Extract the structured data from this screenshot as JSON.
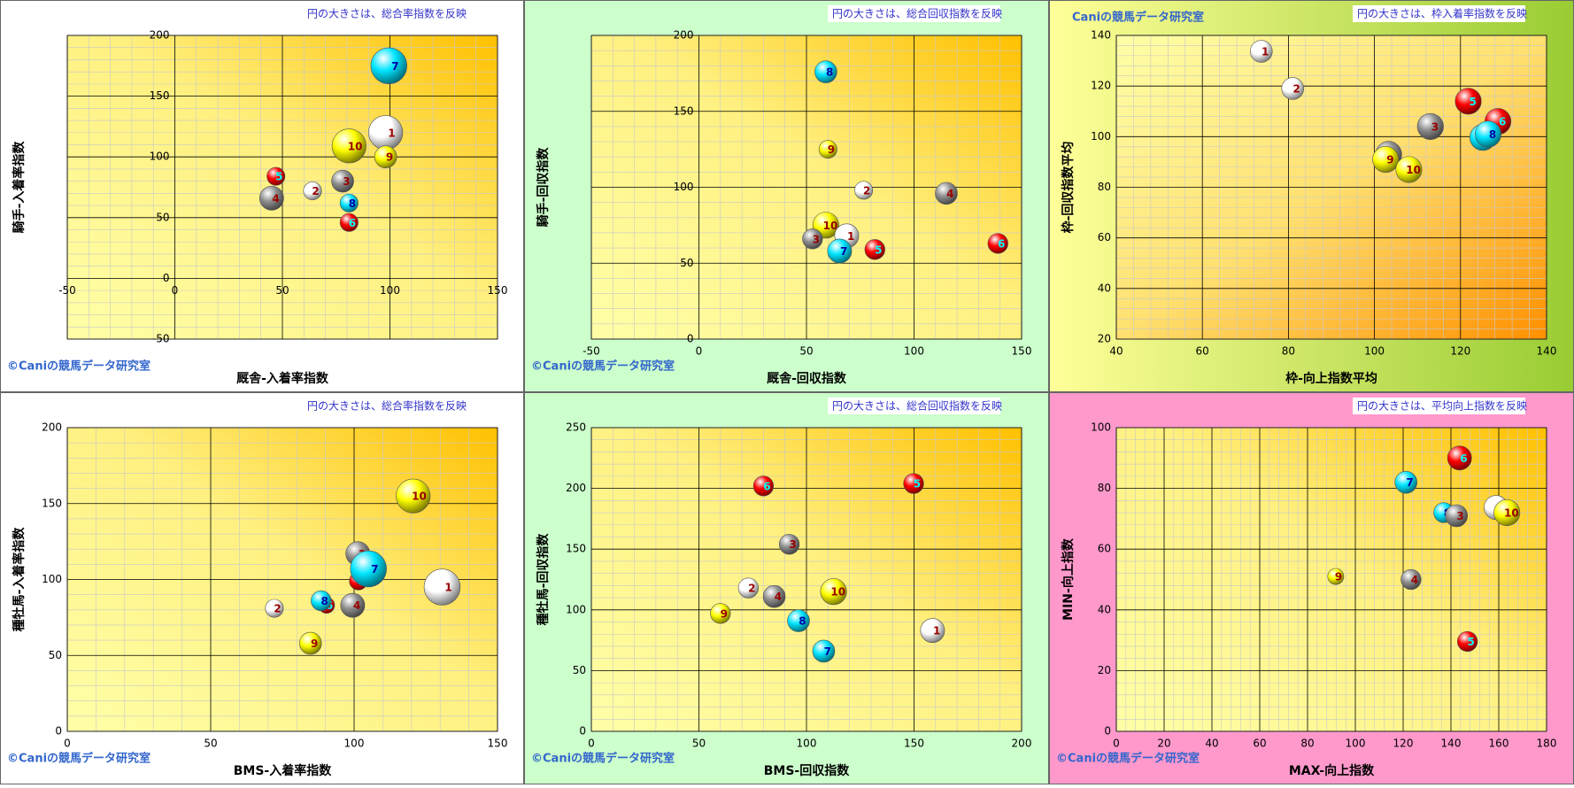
{
  "chart_data": [
    {
      "type": "bubble",
      "annotation": "円の大きさは、総合率指数を反映",
      "credit": "©Caniの競馬データ研究室",
      "credit_corner": "bottom-left",
      "x_label": "厩舎-入着率指数",
      "y_label": "騎手-入着率指数",
      "xlim": [
        -50,
        150
      ],
      "xticks": [
        -50,
        0,
        50,
        100,
        150
      ],
      "ylim": [
        -50,
        200
      ],
      "yticks": [
        -50,
        0,
        50,
        100,
        150,
        200
      ],
      "grid": true,
      "labels": [
        "1",
        "7",
        "10",
        "9",
        "3",
        "2",
        "5",
        "4",
        "8",
        "6"
      ],
      "x": [
        98,
        99.5,
        81,
        98,
        78,
        64,
        47,
        45,
        81,
        81
      ],
      "values": [
        120,
        175,
        109,
        100,
        80,
        72,
        84,
        66,
        62,
        46
      ],
      "sizes": [
        17,
        18,
        17,
        11,
        11,
        9,
        9,
        12,
        9,
        9
      ],
      "colors": [
        "#ffffff",
        "#00e5ff",
        "#ffff00",
        "#ffff00",
        "#909090",
        "#ffffff",
        "#ff0000",
        "#909090",
        "#00e5ff",
        "#ff0000"
      ]
    },
    {
      "type": "bubble",
      "annotation": "円の大きさは、総合回収指数を反映",
      "credit": "©Caniの競馬データ研究室",
      "credit_corner": "bottom-left",
      "x_label": "厩舎-回収指数",
      "y_label": "騎手-回収指数",
      "xlim": [
        -50,
        150
      ],
      "xticks": [
        -50,
        0,
        50,
        100,
        150
      ],
      "ylim": [
        0,
        200
      ],
      "yticks": [
        0,
        50,
        100,
        150,
        200
      ],
      "grid": true,
      "labels": [
        "8",
        "9",
        "2",
        "4",
        "10",
        "1",
        "3",
        "7",
        "5",
        "6"
      ],
      "x": [
        59,
        60,
        76.6,
        115,
        59,
        68.7,
        52.8,
        65.4,
        81.8,
        139
      ],
      "values": [
        176,
        125,
        98,
        96,
        75,
        68,
        66,
        58,
        59,
        63
      ],
      "sizes": [
        11,
        9,
        9,
        11,
        13,
        12,
        10,
        12,
        10,
        10
      ],
      "colors": [
        "#00e5ff",
        "#ffff00",
        "#ffffff",
        "#909090",
        "#ffff00",
        "#ffffff",
        "#909090",
        "#00e5ff",
        "#ff0000",
        "#ff0000"
      ]
    },
    {
      "type": "bubble",
      "annotation": "円の大きさは、枠入着率指数を反映",
      "credit": "Caniの競馬データ研究室",
      "credit_corner": "top-left",
      "x_label": "枠-向上指数平均",
      "y_label": "枠-回収指数平均",
      "xlim": [
        40,
        140
      ],
      "xticks": [
        40,
        60,
        80,
        100,
        120,
        140
      ],
      "ylim": [
        20,
        140
      ],
      "yticks": [
        20,
        40,
        60,
        80,
        100,
        120,
        140
      ],
      "grid": true,
      "labels": [
        "1",
        "2",
        "3",
        "5",
        "6",
        "7",
        "8",
        "4",
        "9",
        "10"
      ],
      "x": [
        73.7,
        81,
        113,
        121.8,
        128.7,
        125.2,
        126.4,
        103.3,
        102.6,
        108
      ],
      "values": [
        133.7,
        119,
        104,
        114,
        106,
        99.7,
        101,
        93,
        91,
        87
      ],
      "sizes": [
        11,
        11,
        13,
        13,
        13,
        13,
        13,
        13,
        13,
        13
      ],
      "colors": [
        "#ffffff",
        "#ffffff",
        "#909090",
        "#ff0000",
        "#ff0000",
        "#00e5ff",
        "#00e5ff",
        "#909090",
        "#ffff00",
        "#ffff00"
      ]
    },
    {
      "type": "bubble",
      "annotation": "円の大きさは、総合率指数を反映",
      "credit": "©Caniの競馬データ研究室",
      "credit_corner": "bottom-left",
      "x_label": "BMS-入着率指数",
      "y_label": "種牡馬-入着率指数",
      "xlim": [
        0,
        150
      ],
      "xticks": [
        0,
        50,
        100,
        150
      ],
      "ylim": [
        0,
        200
      ],
      "yticks": [
        0,
        50,
        100,
        150,
        200
      ],
      "grid": true,
      "labels": [
        "10",
        "1",
        "3",
        "5",
        "7",
        "4",
        "6",
        "8",
        "2",
        "9"
      ],
      "x": [
        120.6,
        130.7,
        101.3,
        101.5,
        105,
        99.5,
        90.4,
        88.5,
        72.2,
        84.8
      ],
      "values": [
        155,
        95,
        117,
        99,
        107,
        83,
        83,
        86,
        81,
        58
      ],
      "sizes": [
        17,
        18,
        12,
        9,
        18,
        12,
        8,
        10,
        9,
        11
      ],
      "colors": [
        "#ffff00",
        "#ffffff",
        "#909090",
        "#ff0000",
        "#00e5ff",
        "#909090",
        "#ff0000",
        "#00e5ff",
        "#ffffff",
        "#ffff00"
      ]
    },
    {
      "type": "bubble",
      "annotation": "円の大きさは、総合回収指数を反映",
      "credit": "©Caniの競馬データ研究室",
      "credit_corner": "bottom-left",
      "x_label": "BMS-回収指数",
      "y_label": "種牡馬-回収指数",
      "xlim": [
        0,
        200
      ],
      "xticks": [
        0,
        50,
        100,
        150,
        200
      ],
      "ylim": [
        0,
        250
      ],
      "yticks": [
        0,
        50,
        100,
        150,
        200,
        250
      ],
      "grid": true,
      "labels": [
        "6",
        "5",
        "3",
        "2",
        "4",
        "10",
        "9",
        "8",
        "1",
        "7"
      ],
      "x": [
        80,
        149.8,
        92,
        73,
        85,
        112.6,
        60,
        96.3,
        158.6,
        108
      ],
      "values": [
        202,
        204,
        154,
        118,
        111,
        115,
        97,
        91,
        83,
        66
      ],
      "sizes": [
        10,
        10,
        10,
        10,
        11,
        13,
        10,
        11,
        12,
        11
      ],
      "colors": [
        "#ff0000",
        "#ff0000",
        "#909090",
        "#ffffff",
        "#909090",
        "#ffff00",
        "#ffff00",
        "#00e5ff",
        "#ffffff",
        "#00e5ff"
      ]
    },
    {
      "type": "bubble",
      "annotation": "円の大きさは、平均向上指数を反映",
      "credit": "©Caniの競馬データ研究室",
      "credit_corner": "bottom-left",
      "x_label": "MAX-向上指数",
      "y_label": "MIN-向上指数",
      "xlim": [
        0,
        180
      ],
      "xticks": [
        0,
        20,
        40,
        60,
        80,
        100,
        120,
        140,
        160,
        180
      ],
      "ylim": [
        0,
        100
      ],
      "yticks": [
        0,
        20,
        40,
        60,
        80,
        100
      ],
      "grid": true,
      "labels": [
        "6",
        "7",
        "1",
        "10",
        "8",
        "3",
        "4",
        "9",
        "5"
      ],
      "x": [
        143.6,
        121.2,
        158.9,
        163.4,
        137,
        142.3,
        123.3,
        91.8,
        146.9
      ],
      "values": [
        90,
        82,
        73.7,
        72,
        72,
        71,
        50,
        51,
        29.6
      ],
      "sizes": [
        12,
        11,
        12,
        13,
        10,
        11,
        10,
        8,
        10
      ],
      "colors": [
        "#ff0000",
        "#00e5ff",
        "#ffffff",
        "#ffff00",
        "#00e5ff",
        "#909090",
        "#909090",
        "#ffff00",
        "#ff0000"
      ]
    }
  ]
}
